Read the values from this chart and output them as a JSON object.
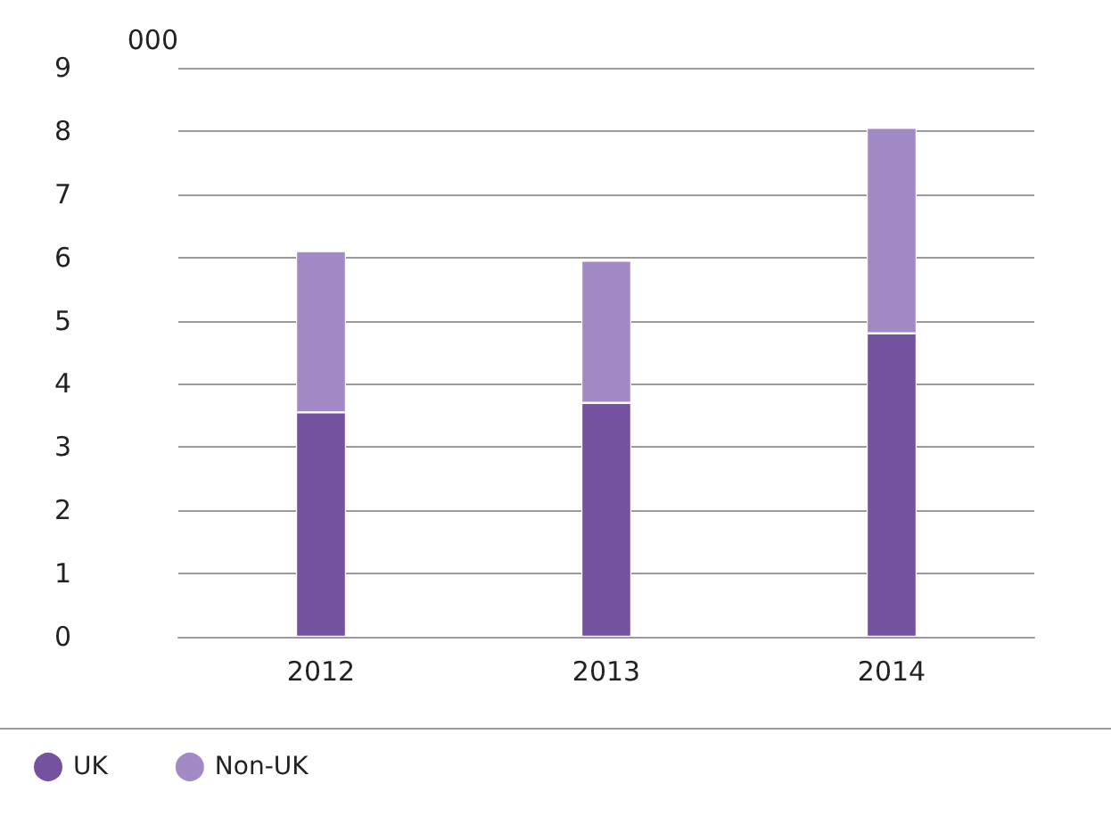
{
  "chart_data": {
    "type": "bar",
    "ylabel": "000",
    "categories": [
      "2012",
      "2013",
      "2014"
    ],
    "stacked": true,
    "series": [
      {
        "name": "UK",
        "color": "#7452a0",
        "values": [
          3.55,
          3.7,
          4.8
        ]
      },
      {
        "name": "Non-UK",
        "color": "#a28bc4",
        "values": [
          2.55,
          2.25,
          3.25
        ]
      }
    ],
    "ylim": [
      0,
      9
    ],
    "yticks": [
      0,
      1,
      2,
      3,
      4,
      5,
      6,
      7,
      8,
      9
    ],
    "grid": "y",
    "legend": "bottom left"
  }
}
